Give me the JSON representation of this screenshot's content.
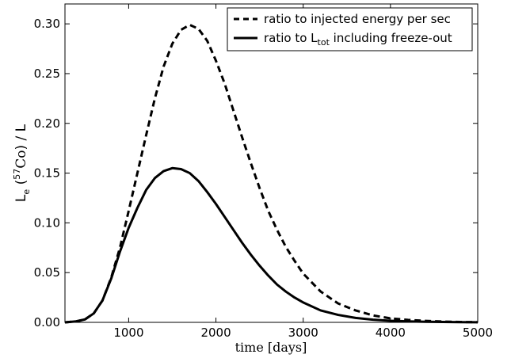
{
  "chart_data": {
    "type": "line",
    "title": "",
    "xlabel": "time [days]",
    "ylabel": {
      "prefix": "L",
      "prefix_sub": "e",
      "open": "(",
      "isotope_sup": "57",
      "isotope": "Co",
      "close": ") / L"
    },
    "xlim": [
      270,
      5000
    ],
    "ylim": [
      0,
      0.32
    ],
    "xticks": [
      1000,
      2000,
      3000,
      4000,
      5000
    ],
    "xtick_labels": [
      "1000",
      "2000",
      "3000",
      "4000",
      "5000"
    ],
    "yticks": [
      0,
      0.05,
      0.1,
      0.15,
      0.2,
      0.25,
      0.3
    ],
    "ytick_labels": [
      "0.00",
      "0.05",
      "0.10",
      "0.15",
      "0.20",
      "0.25",
      "0.30"
    ],
    "grid": false,
    "legend": {
      "placement": "top-right",
      "entries": [
        {
          "label": "ratio to injected energy per sec",
          "style": "dashed",
          "color": "#000000"
        },
        {
          "label": "ratio to L",
          "label_sub": "tot",
          "label_rest": " including freeze-out",
          "style": "solid",
          "color": "#000000"
        }
      ]
    },
    "series": [
      {
        "label_ref": "ratio to injected energy per sec",
        "style": "dashed",
        "color": "#000000",
        "x": [
          270,
          400,
          500,
          600,
          700,
          800,
          900,
          1000,
          1100,
          1200,
          1300,
          1400,
          1500,
          1600,
          1700,
          1800,
          1900,
          2000,
          2100,
          2200,
          2300,
          2400,
          2500,
          2600,
          2700,
          2800,
          2900,
          3000,
          3200,
          3400,
          3600,
          3800,
          4000,
          4200,
          4400,
          4600,
          4800,
          5000
        ],
        "y": [
          0.0,
          0.001,
          0.003,
          0.009,
          0.022,
          0.045,
          0.075,
          0.112,
          0.15,
          0.188,
          0.225,
          0.257,
          0.28,
          0.294,
          0.299,
          0.295,
          0.283,
          0.263,
          0.24,
          0.213,
          0.186,
          0.16,
          0.135,
          0.112,
          0.093,
          0.076,
          0.062,
          0.049,
          0.031,
          0.019,
          0.012,
          0.007,
          0.004,
          0.0025,
          0.0015,
          0.0008,
          0.0004,
          0.0002
        ]
      },
      {
        "label_ref": "ratio to L_tot including freeze-out",
        "style": "solid",
        "color": "#000000",
        "x": [
          270,
          400,
          500,
          600,
          700,
          800,
          900,
          1000,
          1100,
          1200,
          1300,
          1400,
          1500,
          1600,
          1700,
          1800,
          1900,
          2000,
          2100,
          2200,
          2300,
          2400,
          2500,
          2600,
          2700,
          2800,
          2900,
          3000,
          3200,
          3400,
          3600,
          3800,
          4000,
          4200,
          4400,
          4600,
          4800,
          5000
        ],
        "y": [
          0.0,
          0.001,
          0.003,
          0.009,
          0.022,
          0.044,
          0.071,
          0.095,
          0.115,
          0.133,
          0.145,
          0.152,
          0.155,
          0.154,
          0.15,
          0.142,
          0.131,
          0.119,
          0.106,
          0.093,
          0.08,
          0.068,
          0.057,
          0.047,
          0.038,
          0.031,
          0.025,
          0.02,
          0.012,
          0.0075,
          0.0045,
          0.0027,
          0.0016,
          0.001,
          0.0006,
          0.0004,
          0.0002,
          0.0001
        ]
      }
    ]
  }
}
